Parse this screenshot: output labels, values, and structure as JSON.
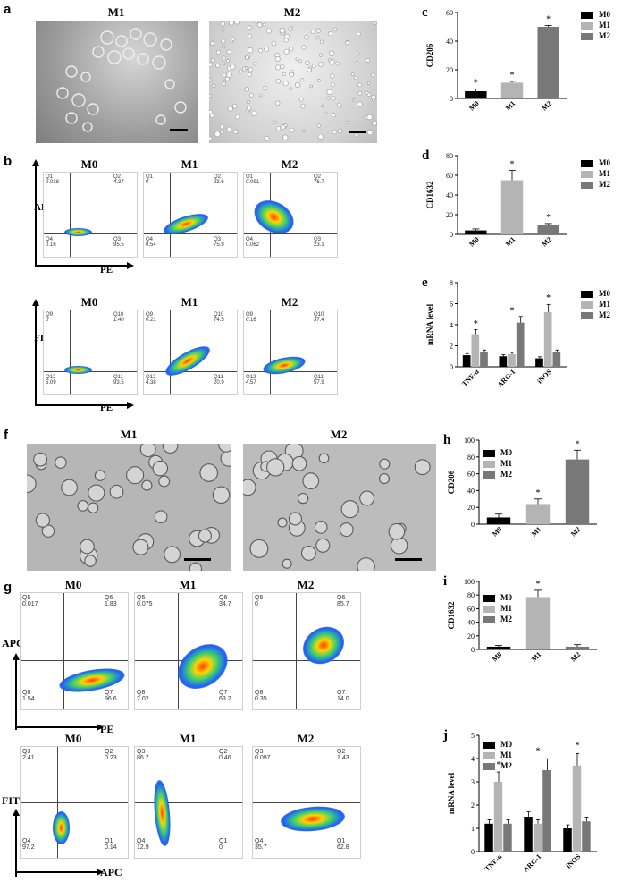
{
  "panels": {
    "a": {
      "label": "a",
      "titles": [
        "M1",
        "M2"
      ]
    },
    "b": {
      "label": "b",
      "row1": {
        "y_axis": "APC",
        "x_axis": "PE",
        "plots": [
          {
            "title": "M0",
            "q": [
              "Q1",
              "Q2",
              "Q3",
              "Q4"
            ],
            "v": [
              "0.038",
              "4.37",
              "95.5",
              "0.16"
            ]
          },
          {
            "title": "M1",
            "q": [
              "Q1",
              "Q2",
              "Q3",
              "Q4"
            ],
            "v": [
              "0",
              "23.6",
              "75.9",
              "0.54"
            ]
          },
          {
            "title": "M2",
            "q": [
              "Q1",
              "Q2",
              "Q3",
              "Q4"
            ],
            "v": [
              "0.091",
              "76.7",
              "23.1",
              "0.062"
            ]
          }
        ]
      },
      "row2": {
        "y_axis": "FITC",
        "x_axis": "PE",
        "plots": [
          {
            "title": "M0",
            "q": [
              "Q9",
              "Q10",
              "Q11",
              "Q12"
            ],
            "v": [
              "0",
              "1.40",
              "93.5",
              "5.09"
            ]
          },
          {
            "title": "M1",
            "q": [
              "Q9",
              "Q10",
              "Q11",
              "Q12"
            ],
            "v": [
              "0.21",
              "74.5",
              "20.9",
              "4.38"
            ]
          },
          {
            "title": "M2",
            "q": [
              "Q9",
              "Q10",
              "Q11",
              "Q12"
            ],
            "v": [
              "0.16",
              "37.4",
              "57.9",
              "4.57"
            ]
          }
        ]
      }
    },
    "f": {
      "label": "f",
      "titles": [
        "M1",
        "M2"
      ]
    },
    "g": {
      "label": "g",
      "row1": {
        "y_axis": "APC",
        "x_axis": "PE",
        "plots": [
          {
            "title": "M0",
            "q": [
              "Q5",
              "Q6",
              "Q7",
              "Q8"
            ],
            "v": [
              "0.017",
              "1.83",
              "96.6",
              "1.54"
            ]
          },
          {
            "title": "M1",
            "q": [
              "Q5",
              "Q6",
              "Q7",
              "Q8"
            ],
            "v": [
              "0.075",
              "34.7",
              "63.2",
              "2.02"
            ]
          },
          {
            "title": "M2",
            "q": [
              "Q5",
              "Q6",
              "Q7",
              "Q8"
            ],
            "v": [
              "0",
              "85.7",
              "14.0",
              "0.35"
            ]
          }
        ]
      },
      "row2": {
        "y_axis": "FITC",
        "x_axis": "APC",
        "plots": [
          {
            "title": "M0",
            "q": [
              "Q3",
              "Q2",
              "Q1",
              "Q4"
            ],
            "v": [
              "2.41",
              "0.23",
              "0.14",
              "97.2"
            ]
          },
          {
            "title": "M1",
            "q": [
              "Q3",
              "Q2",
              "Q1",
              "Q4"
            ],
            "v": [
              "86.7",
              "0.46",
              "0",
              "12.9"
            ]
          },
          {
            "title": "M2",
            "q": [
              "Q3",
              "Q2",
              "Q1",
              "Q4"
            ],
            "v": [
              "0.097",
              "1.43",
              "62.8",
              "35.7"
            ]
          }
        ]
      }
    }
  },
  "legend": [
    "M0",
    "M1",
    "M2"
  ],
  "colors": {
    "M0": "#000000",
    "M1": "#b4b4b4",
    "M2": "#787878"
  },
  "chart_data": [
    {
      "id": "c",
      "type": "bar",
      "label": "c",
      "ylabel": "CD206",
      "categories": [
        "M0",
        "M1",
        "M2"
      ],
      "values": [
        5,
        11,
        50
      ],
      "errors": [
        1.5,
        1,
        1
      ],
      "ylim": [
        0,
        60
      ],
      "yticks": [
        0,
        20,
        40,
        60
      ],
      "marks": [
        "*",
        "*",
        "*"
      ]
    },
    {
      "id": "d",
      "type": "bar",
      "label": "d",
      "ylabel": "CD1632",
      "categories": [
        "M0",
        "M1",
        "M2"
      ],
      "values": [
        4,
        55,
        10
      ],
      "errors": [
        1.5,
        10,
        1
      ],
      "ylim": [
        0,
        80
      ],
      "yticks": [
        0,
        20,
        40,
        60,
        80
      ],
      "marks": [
        "",
        "*",
        "*"
      ]
    },
    {
      "id": "e",
      "type": "bar",
      "label": "e",
      "ylabel": "mRNA level",
      "categories": [
        "TNF-α",
        "ARG-1",
        "iNOS"
      ],
      "series": [
        {
          "name": "M0",
          "values": [
            1.1,
            1.0,
            0.8
          ]
        },
        {
          "name": "M1",
          "values": [
            3.1,
            1.2,
            5.2
          ]
        },
        {
          "name": "M2",
          "values": [
            1.4,
            4.2,
            1.4
          ]
        }
      ],
      "ylim": [
        0,
        8
      ],
      "yticks": [
        0,
        2,
        4,
        6,
        8
      ],
      "marks": [
        "*",
        "*",
        "*"
      ]
    },
    {
      "id": "h",
      "type": "bar",
      "label": "h",
      "ylabel": "CD206",
      "categories": [
        "M0",
        "M1",
        "M2"
      ],
      "values": [
        8,
        24,
        77
      ],
      "errors": [
        4,
        6,
        11
      ],
      "ylim": [
        0,
        100
      ],
      "yticks": [
        0,
        20,
        40,
        60,
        80,
        100
      ],
      "marks": [
        "",
        "*",
        "*"
      ]
    },
    {
      "id": "i",
      "type": "bar",
      "label": "i",
      "ylabel": "CD1632",
      "categories": [
        "M0",
        "M1",
        "M2"
      ],
      "values": [
        4,
        77,
        4
      ],
      "errors": [
        2,
        10,
        3
      ],
      "ylim": [
        0,
        100
      ],
      "yticks": [
        0,
        20,
        40,
        60,
        80,
        100
      ],
      "marks": [
        "",
        "*",
        ""
      ]
    },
    {
      "id": "j",
      "type": "bar",
      "label": "j",
      "ylabel": "mRNA level",
      "categories": [
        "TNF-α",
        "ARG-1",
        "iNOS"
      ],
      "series": [
        {
          "name": "M0",
          "values": [
            1.2,
            1.5,
            1.0
          ]
        },
        {
          "name": "M1",
          "values": [
            3.0,
            1.2,
            3.7
          ]
        },
        {
          "name": "M2",
          "values": [
            1.2,
            3.5,
            1.3
          ]
        }
      ],
      "ylim": [
        0,
        5
      ],
      "yticks": [
        0,
        1,
        2,
        3,
        4,
        5
      ],
      "marks": [
        "*",
        "*",
        "*"
      ]
    }
  ]
}
